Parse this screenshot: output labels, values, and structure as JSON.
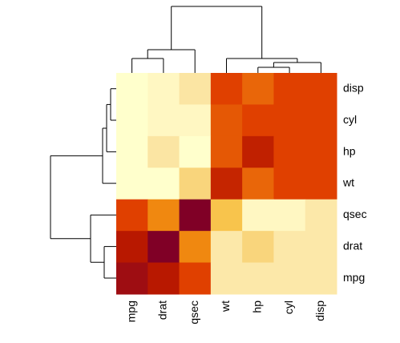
{
  "chart_data": {
    "type": "heatmap",
    "rows": [
      "disp",
      "cyl",
      "hp",
      "wt",
      "qsec",
      "drat",
      "mpg"
    ],
    "columns": [
      "mpg",
      "drat",
      "qsec",
      "wt",
      "hp",
      "cyl",
      "disp"
    ],
    "values": [
      [
        1,
        0.9,
        0.78,
        0.3,
        0.38,
        0.3,
        0.3
      ],
      [
        1,
        0.9,
        0.9,
        0.35,
        0.3,
        0.3,
        0.3
      ],
      [
        1,
        0.78,
        1,
        0.35,
        0.18,
        0.3,
        0.3
      ],
      [
        1,
        1,
        0.7,
        0.2,
        0.38,
        0.3,
        0.3
      ],
      [
        0.3,
        0.45,
        0,
        0.62,
        0.9,
        0.9,
        0.8
      ],
      [
        0.15,
        0,
        0.45,
        0.8,
        0.7,
        0.8,
        0.8
      ],
      [
        0.08,
        0.15,
        0.3,
        0.8,
        0.8,
        0.8,
        0.8
      ]
    ],
    "colorscale": [
      [
        0,
        "#800026"
      ],
      [
        0.15,
        "#b81800"
      ],
      [
        0.3,
        "#e04000"
      ],
      [
        0.45,
        "#f08810"
      ],
      [
        0.6,
        "#f8c040"
      ],
      [
        0.75,
        "#fae09a"
      ],
      [
        0.88,
        "#fff5c0"
      ],
      [
        1,
        "#ffffcc"
      ]
    ]
  }
}
